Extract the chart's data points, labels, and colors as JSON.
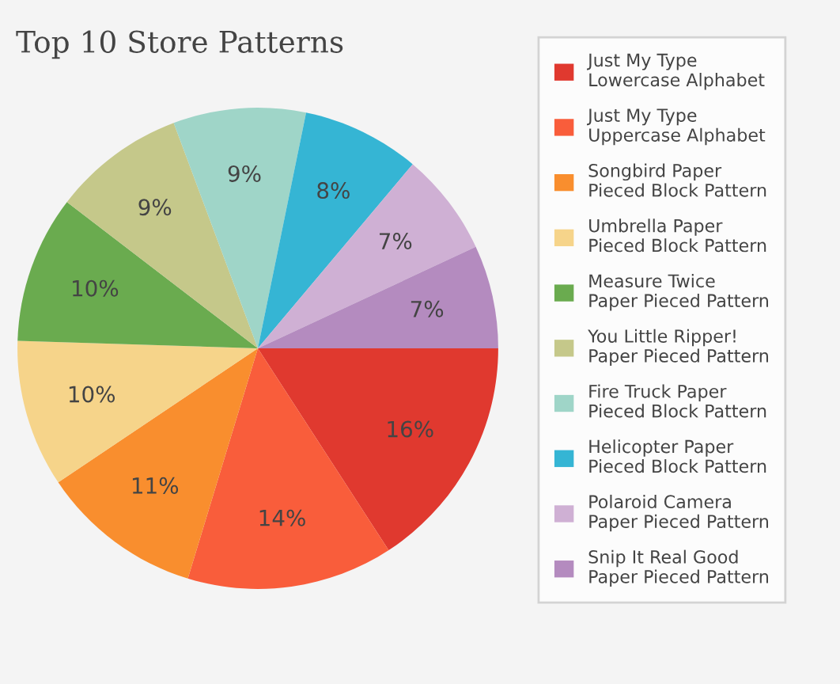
{
  "chart_data": {
    "type": "pie",
    "title": "Top 10 Store Patterns",
    "categories": [
      "Just My Type\nLowercase Alphabet",
      "Just My Type\nUppercase Alphabet",
      "Songbird Paper\nPieced Block Pattern",
      "Umbrella Paper\nPieced Block Pattern",
      "Measure Twice\nPaper Pieced Pattern",
      "You Little Ripper!\nPaper Pieced Pattern",
      "Fire Truck Paper\nPieced Block Pattern",
      "Helicopter Paper\nPieced Block Pattern",
      "Polaroid Camera\nPaper Pieced Pattern",
      "Snip It Real Good\nPaper Pieced Pattern"
    ],
    "values": [
      16,
      14,
      11,
      10,
      10,
      9,
      9,
      8,
      7,
      7
    ],
    "colors": [
      "#e0392f",
      "#f95d3b",
      "#f98e2e",
      "#f6d48a",
      "#6aab4f",
      "#c5c88a",
      "#9fd5c8",
      "#35b5d4",
      "#cfb0d4",
      "#b48bbf"
    ],
    "value_labels": [
      "16%",
      "14%",
      "11%",
      "10%",
      "10%",
      "9%",
      "9%",
      "8%",
      "7%",
      "7%"
    ],
    "legend": "right"
  }
}
